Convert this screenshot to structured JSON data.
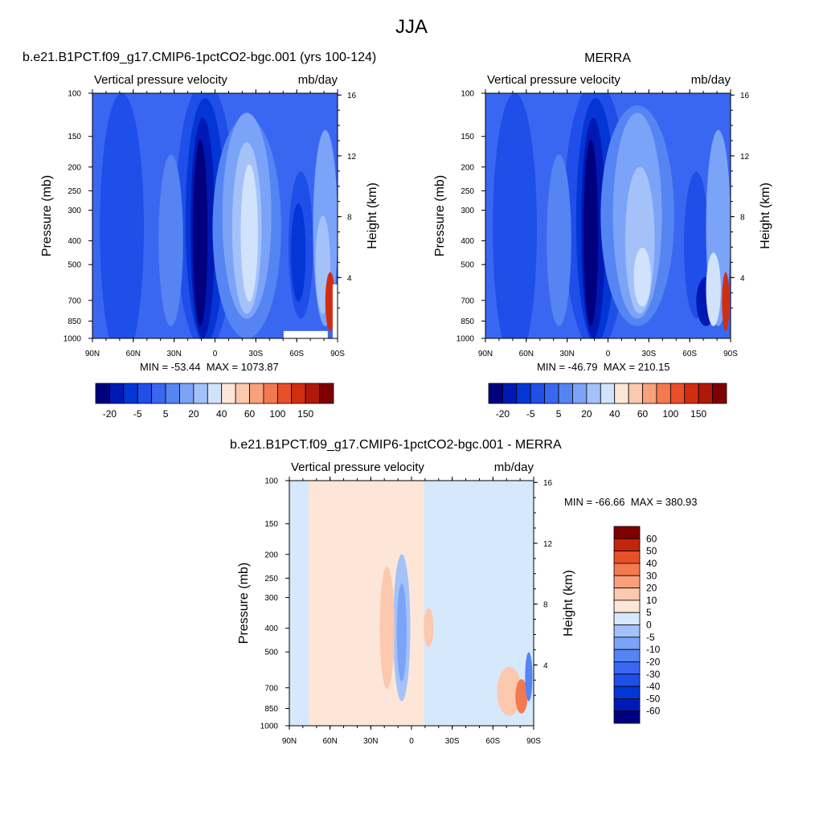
{
  "title": "JJA",
  "colors": {
    "abs_scale": [
      "#00007f",
      "#0019b4",
      "#0336d4",
      "#1f4ee8",
      "#3a67f1",
      "#5584f3",
      "#7ba3f7",
      "#a4c2f9",
      "#d1e3fc",
      "#fde6d8",
      "#fcc8ae",
      "#f9a07c",
      "#f37a50",
      "#e8502a",
      "#d22d10",
      "#b0190a",
      "#7f0000"
    ],
    "diff_scale": [
      "#00007f",
      "#0019b4",
      "#0336d4",
      "#1f4ee8",
      "#3a67f1",
      "#5584f3",
      "#7ba3f7",
      "#a4c2f9",
      "#d6e8fc",
      "#fde6d8",
      "#fcc8ae",
      "#f9a07c",
      "#f37a50",
      "#e8502a",
      "#c2260c",
      "#7f0000"
    ]
  },
  "panels": [
    {
      "id": "model",
      "title": "b.e21.B1PCT.f09_g17.CMIP6-1pctCO2-bgc.001 (yrs 100-124)",
      "left_label": "Vertical pressure velocity",
      "right_label": "mb/day",
      "ylabel": "Pressure (mb)",
      "y2label": "Height (km)",
      "min_text": "MIN = -53.44",
      "max_text": "MAX = 1073.87"
    },
    {
      "id": "obs",
      "title": "MERRA",
      "left_label": "Vertical pressure velocity",
      "right_label": "mb/day",
      "ylabel": "Pressure (mb)",
      "y2label": "Height (km)",
      "min_text": "MIN = -46.79",
      "max_text": "MAX = 210.15"
    },
    {
      "id": "diff",
      "title": "b.e21.B1PCT.f09_g17.CMIP6-1pctCO2-bgc.001 - MERRA",
      "left_label": "Vertical pressure velocity",
      "right_label": "mb/day",
      "ylabel": "Pressure (mb)",
      "y2label": "Height (km)",
      "min_text": "MIN = -66.66",
      "max_text": "MAX = 380.93"
    }
  ],
  "chart_data": [
    {
      "type": "heatmap",
      "panel": "model",
      "x_ticks": [
        "90N",
        "60N",
        "30N",
        "0",
        "30S",
        "60S",
        "90S"
      ],
      "y_ticks": [
        "100",
        "150",
        "200",
        "250",
        "300",
        "400",
        "500",
        "700",
        "850",
        "1000"
      ],
      "y_ticks_values": [
        100,
        150,
        200,
        250,
        300,
        400,
        500,
        700,
        850,
        1000
      ],
      "y2_ticks": [
        "16",
        "12",
        "8",
        "4"
      ],
      "y2_ticks_values": [
        16,
        12,
        8,
        4
      ],
      "ylim": [
        1000,
        100
      ],
      "xlim": [
        90,
        -90
      ],
      "colorbar_labels": [
        "-20",
        "-5",
        "5",
        "20",
        "40",
        "60",
        "100",
        "150"
      ],
      "min": -53.44,
      "max": 1073.87
    },
    {
      "type": "heatmap",
      "panel": "obs",
      "x_ticks": [
        "90N",
        "60N",
        "30N",
        "0",
        "30S",
        "60S",
        "90S"
      ],
      "y_ticks": [
        "100",
        "150",
        "200",
        "250",
        "300",
        "400",
        "500",
        "700",
        "850",
        "1000"
      ],
      "y_ticks_values": [
        100,
        150,
        200,
        250,
        300,
        400,
        500,
        700,
        850,
        1000
      ],
      "y2_ticks": [
        "16",
        "12",
        "8",
        "4"
      ],
      "y2_ticks_values": [
        16,
        12,
        8,
        4
      ],
      "ylim": [
        1000,
        100
      ],
      "xlim": [
        90,
        -90
      ],
      "colorbar_labels": [
        "-20",
        "-5",
        "5",
        "20",
        "40",
        "60",
        "100",
        "150"
      ],
      "min": -46.79,
      "max": 210.15
    },
    {
      "type": "heatmap",
      "panel": "diff",
      "x_ticks": [
        "90N",
        "60N",
        "30N",
        "0",
        "30S",
        "60S",
        "90S"
      ],
      "y_ticks": [
        "100",
        "150",
        "200",
        "250",
        "300",
        "400",
        "500",
        "700",
        "850",
        "1000"
      ],
      "y_ticks_values": [
        100,
        150,
        200,
        250,
        300,
        400,
        500,
        700,
        850,
        1000
      ],
      "y2_ticks": [
        "16",
        "12",
        "8",
        "4"
      ],
      "y2_ticks_values": [
        16,
        12,
        8,
        4
      ],
      "ylim": [
        1000,
        100
      ],
      "xlim": [
        90,
        -90
      ],
      "colorbar_labels": [
        "60",
        "50",
        "40",
        "30",
        "20",
        "10",
        "5",
        "0",
        "-5",
        "-10",
        "-20",
        "-30",
        "-40",
        "-50",
        "-60"
      ],
      "min": -66.66,
      "max": 380.93
    }
  ]
}
